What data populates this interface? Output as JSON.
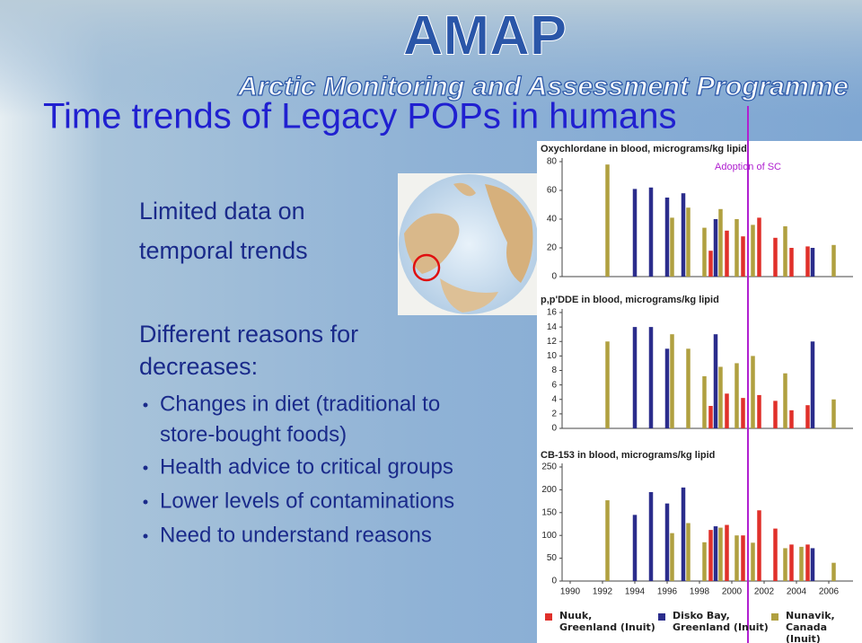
{
  "header": {
    "logo": "AMAP",
    "subtitle": "Arctic Monitoring and Assessment Programme"
  },
  "title": "Time trends of Legacy POPs in humans",
  "text": {
    "intro": [
      "Limited data on",
      "temporal trends"
    ],
    "reasons": [
      "Different reasons for",
      "decreases:"
    ],
    "bullets": [
      [
        "Changes in diet (traditional to",
        "store-bought foods)"
      ],
      [
        "Health advice to critical groups"
      ],
      [
        "Lower levels of contaminations"
      ],
      [
        "Need to understand reasons"
      ]
    ]
  },
  "annotation": {
    "text": "Adoption of SC",
    "x": 2001,
    "color": "#b020d0"
  },
  "chart_data": [
    {
      "type": "bar",
      "title": "Oxychlordane in blood, micrograms/kg lipid",
      "x": [
        1990,
        1991,
        1992,
        1993,
        1994,
        1995,
        1996,
        1997,
        1998,
        1999,
        2000,
        2001,
        2002,
        2003,
        2004,
        2005,
        2006
      ],
      "xlim": [
        1989.5,
        2007.5
      ],
      "ylim": [
        0,
        80
      ],
      "yticks": [
        0,
        20,
        40,
        60,
        80
      ],
      "series": [
        {
          "color": "#e0302a",
          "values": [
            null,
            null,
            null,
            null,
            null,
            null,
            null,
            null,
            null,
            18,
            32,
            28,
            41,
            27,
            20,
            21,
            null
          ]
        },
        {
          "color": "#2b2d8c",
          "values": [
            null,
            null,
            null,
            null,
            61,
            62,
            55,
            58,
            null,
            40,
            null,
            null,
            null,
            null,
            null,
            20,
            null
          ]
        },
        {
          "color": "#b0a040",
          "values": [
            null,
            null,
            78,
            null,
            null,
            null,
            41,
            48,
            34,
            47,
            40,
            36,
            null,
            35,
            null,
            null,
            22
          ]
        }
      ]
    },
    {
      "type": "bar",
      "title": "p,p'DDE in blood, micrograms/kg lipid",
      "x": [
        1990,
        1991,
        1992,
        1993,
        1994,
        1995,
        1996,
        1997,
        1998,
        1999,
        2000,
        2001,
        2002,
        2003,
        2004,
        2005,
        2006
      ],
      "xlim": [
        1989.5,
        2007.5
      ],
      "ylim": [
        0,
        16
      ],
      "yticks": [
        0,
        2,
        4,
        6,
        8,
        10,
        12,
        14,
        16
      ],
      "series": [
        {
          "color": "#e0302a",
          "values": [
            null,
            null,
            null,
            null,
            null,
            null,
            null,
            null,
            null,
            3.1,
            4.8,
            4.2,
            4.6,
            3.8,
            2.5,
            3.2,
            null
          ]
        },
        {
          "color": "#2b2d8c",
          "values": [
            null,
            null,
            null,
            null,
            14,
            14,
            11,
            null,
            null,
            13,
            null,
            null,
            null,
            null,
            null,
            12,
            null
          ]
        },
        {
          "color": "#b0a040",
          "values": [
            null,
            null,
            12,
            null,
            null,
            null,
            13,
            11,
            7.2,
            8.5,
            9,
            10,
            null,
            7.6,
            null,
            null,
            4
          ]
        }
      ]
    },
    {
      "type": "bar",
      "title": "CB-153 in blood, micrograms/kg lipid",
      "x": [
        1990,
        1991,
        1992,
        1993,
        1994,
        1995,
        1996,
        1997,
        1998,
        1999,
        2000,
        2001,
        2002,
        2003,
        2004,
        2005,
        2006
      ],
      "xlim": [
        1989.5,
        2007.5
      ],
      "xticks": [
        1990,
        1992,
        1994,
        1996,
        1998,
        2000,
        2002,
        2004,
        2006
      ],
      "ylim": [
        0,
        250
      ],
      "yticks": [
        0,
        50,
        100,
        150,
        200,
        250
      ],
      "series": [
        {
          "name": "Nuuk,\nGreenland (Inuit)",
          "color": "#e0302a",
          "values": [
            null,
            null,
            null,
            null,
            null,
            null,
            null,
            null,
            null,
            112,
            123,
            100,
            155,
            115,
            80,
            80,
            null
          ]
        },
        {
          "name": "Disko Bay,\nGreenland (Inuit)",
          "color": "#2b2d8c",
          "values": [
            null,
            null,
            null,
            null,
            145,
            195,
            170,
            205,
            null,
            120,
            null,
            null,
            null,
            null,
            null,
            72,
            null
          ]
        },
        {
          "name": "Nunavik,\nCanada (Inuit)",
          "color": "#b0a040",
          "values": [
            null,
            null,
            177,
            null,
            null,
            null,
            105,
            127,
            85,
            117,
            100,
            84,
            null,
            72,
            75,
            null,
            40
          ]
        }
      ]
    }
  ]
}
